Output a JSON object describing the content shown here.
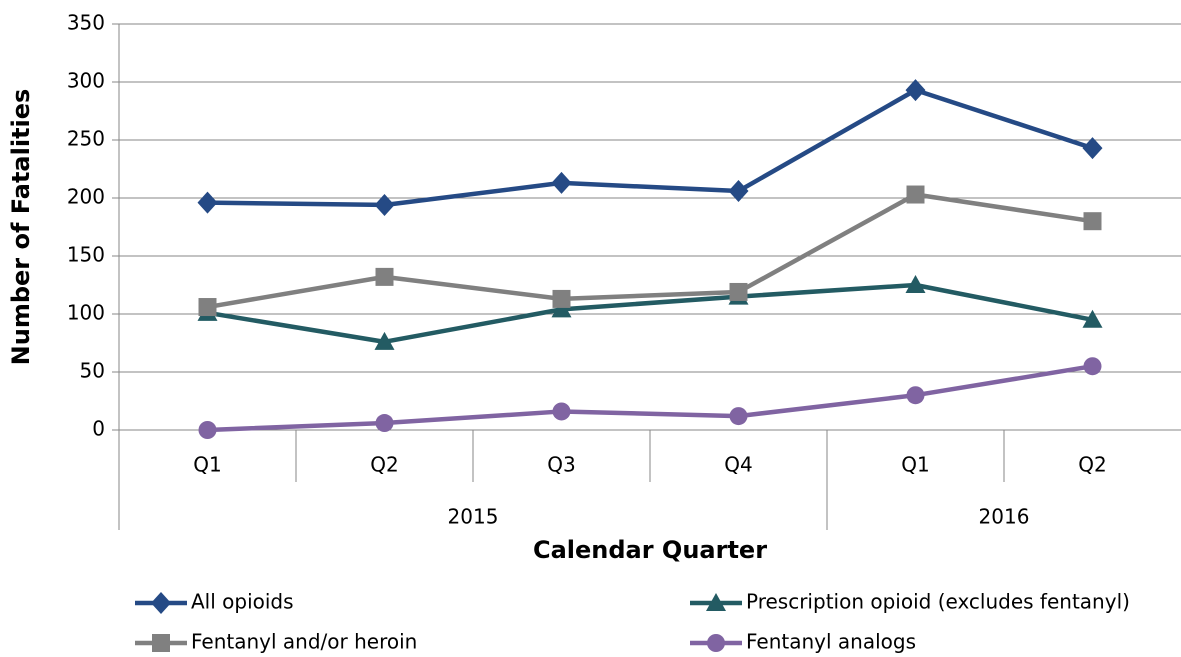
{
  "chart_data": {
    "type": "line",
    "categories": [
      "Q1",
      "Q2",
      "Q3",
      "Q4",
      "Q1",
      "Q2"
    ],
    "groups": [
      {
        "label": "2015",
        "count": 4
      },
      {
        "label": "2016",
        "count": 2
      }
    ],
    "xlabel": "Calendar Quarter",
    "ylabel": "Number of Fatalities",
    "ylim": [
      0,
      350
    ],
    "yticks": [
      0,
      50,
      100,
      150,
      200,
      250,
      300,
      350
    ],
    "grid": true,
    "series": [
      {
        "name": "All opioids",
        "color": "#254a85",
        "marker": "diamond",
        "values": [
          196,
          194,
          213,
          206,
          293,
          243
        ]
      },
      {
        "name": "Prescription opioid (excludes fentanyl)",
        "color": "#235b63",
        "marker": "triangle",
        "values": [
          101,
          76,
          104,
          115,
          125,
          95
        ]
      },
      {
        "name": "Fentanyl and/or heroin",
        "color": "#808080",
        "marker": "square",
        "values": [
          106,
          132,
          113,
          119,
          203,
          180
        ]
      },
      {
        "name": "Fentanyl analogs",
        "color": "#8064a2",
        "marker": "circle",
        "values": [
          0,
          6,
          16,
          12,
          30,
          55
        ]
      }
    ]
  }
}
